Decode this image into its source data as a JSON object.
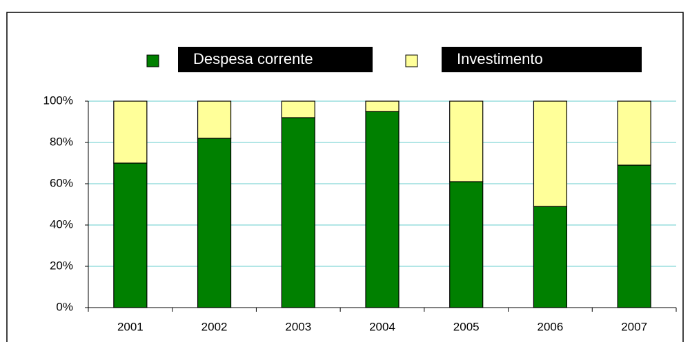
{
  "chart_data": {
    "type": "stacked_bar",
    "categories": [
      "2001",
      "2002",
      "2003",
      "2004",
      "2005",
      "2006",
      "2007"
    ],
    "series": [
      {
        "name": "Despesa corrente",
        "color": "#008000",
        "values": [
          70,
          82,
          92,
          95,
          61,
          49,
          69
        ]
      },
      {
        "name": "Investimento",
        "color": "#ffff99",
        "values": [
          30,
          18,
          8,
          5,
          39,
          51,
          31
        ]
      }
    ],
    "ylim": [
      0,
      100
    ],
    "yticks": [
      {
        "value": 0,
        "label": "0%"
      },
      {
        "value": 20,
        "label": "20%"
      },
      {
        "value": 40,
        "label": "40%"
      },
      {
        "value": 60,
        "label": "60%"
      },
      {
        "value": 80,
        "label": "80%"
      },
      {
        "value": 100,
        "label": "100%"
      }
    ],
    "grid": true,
    "legend": "top"
  }
}
